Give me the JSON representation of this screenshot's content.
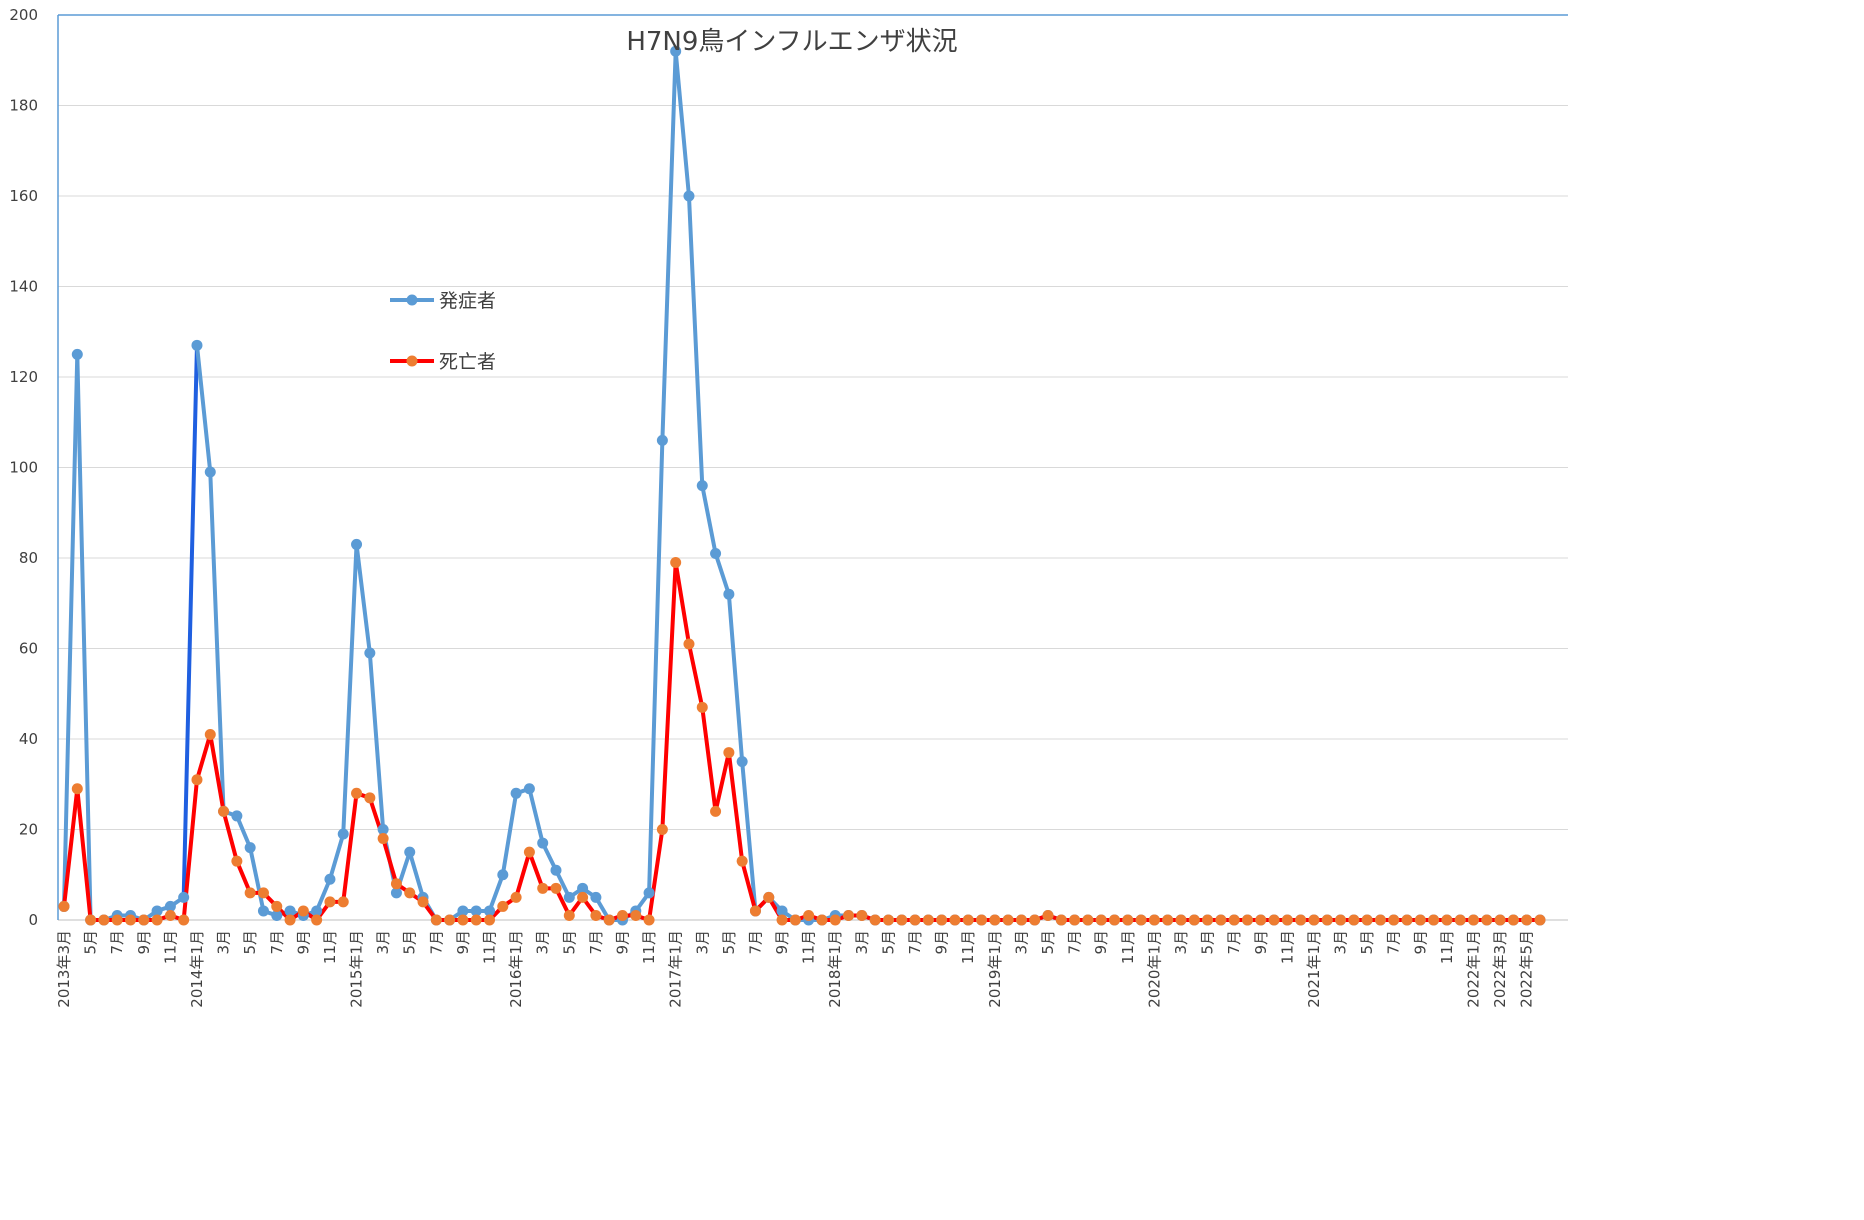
{
  "chart_data": {
    "type": "line",
    "title": "H7N9鳥インフルエンザ状況",
    "xlabel": "",
    "ylabel": "",
    "ylim": [
      0,
      200
    ],
    "y_ticks": [
      0,
      20,
      40,
      60,
      80,
      100,
      120,
      140,
      160,
      180,
      200
    ],
    "grid": true,
    "legend_position": "upper-left-inside",
    "x": [
      "2013年3月",
      "2013年4月",
      "5月",
      "6月",
      "7月",
      "8月",
      "9月",
      "10月",
      "11月",
      "12月",
      "2014年1月",
      "2月",
      "3月",
      "4月",
      "5月",
      "6月",
      "7月",
      "8月",
      "9月",
      "10月",
      "11月",
      "12月",
      "2015年1月",
      "2月",
      "3月",
      "4月",
      "5月",
      "6月",
      "7月",
      "8月",
      "9月",
      "10月",
      "11月",
      "12月",
      "2016年1月",
      "2月",
      "3月",
      "4月",
      "5月",
      "6月",
      "7月",
      "8月",
      "9月",
      "10月",
      "11月",
      "12月",
      "2017年1月",
      "2月",
      "3月",
      "4月",
      "5月",
      "6月",
      "7月",
      "8月",
      "9月",
      "10月",
      "11月",
      "12月",
      "2018年1月",
      "2月",
      "3月",
      "4月",
      "5月",
      "6月",
      "7月",
      "8月",
      "9月",
      "10月",
      "11月",
      "12月",
      "2019年1月",
      "2月",
      "3月",
      "4月",
      "5月",
      "6月",
      "7月",
      "8月",
      "9月",
      "10月",
      "11月",
      "12月",
      "2020年1月",
      "2月",
      "3月",
      "4月",
      "5月",
      "6月",
      "7月",
      "8月",
      "9月",
      "10月",
      "11月",
      "12月",
      "2021年1月",
      "2月",
      "3月",
      "4月",
      "5月",
      "6月",
      "7月",
      "8月",
      "9月",
      "10月",
      "11月",
      "12月",
      "2022年1月",
      "2月",
      "2022年3月",
      "4月",
      "2022年5月",
      "6月"
    ],
    "x_tick_labels": [
      "2013年3月",
      "5月",
      "7月",
      "9月",
      "11月",
      "2014年1月",
      "3月",
      "5月",
      "7月",
      "9月",
      "11月",
      "2015年1月",
      "3月",
      "5月",
      "7月",
      "9月",
      "11月",
      "2016年1月",
      "3月",
      "5月",
      "7月",
      "9月",
      "11月",
      "2017年1月",
      "3月",
      "5月",
      "7月",
      "9月",
      "11月",
      "2018年1月",
      "3月",
      "5月",
      "7月",
      "9月",
      "11月",
      "2019年1月",
      "3月",
      "5月",
      "7月",
      "9月",
      "11月",
      "2020年1月",
      "3月",
      "5月",
      "7月",
      "9月",
      "11月",
      "2021年1月",
      "3月",
      "5月",
      "7月",
      "9月",
      "11月",
      "2022年1月",
      "2022年3月",
      "2022年5月"
    ],
    "series": [
      {
        "name": "発症者",
        "color": "#5b9bd5",
        "highlight_color": "#1f5fe0",
        "values": [
          3,
          125,
          0,
          0,
          1,
          1,
          0,
          2,
          3,
          5,
          127,
          99,
          24,
          23,
          16,
          2,
          1,
          2,
          1,
          2,
          9,
          19,
          83,
          59,
          20,
          6,
          15,
          5,
          0,
          0,
          2,
          2,
          2,
          10,
          28,
          29,
          17,
          11,
          5,
          7,
          5,
          0,
          0,
          2,
          6,
          106,
          192,
          160,
          96,
          81,
          72,
          35,
          2,
          5,
          2,
          0,
          0,
          0,
          1,
          1,
          1,
          0,
          0,
          0,
          0,
          0,
          0,
          0,
          0,
          0,
          0,
          0,
          0,
          0,
          1,
          0,
          0,
          0,
          0,
          0,
          0,
          0,
          0,
          0,
          0,
          0,
          0,
          0,
          0,
          0,
          0,
          0,
          0,
          0,
          0,
          0,
          0,
          0,
          0,
          0,
          0,
          0,
          0,
          0,
          0,
          0,
          0,
          0,
          0,
          0,
          0,
          0
        ]
      },
      {
        "name": "死亡者",
        "color": "#ff0000",
        "marker_color": "#ed7d31",
        "values": [
          3,
          29,
          0,
          0,
          0,
          0,
          0,
          0,
          1,
          0,
          31,
          41,
          24,
          13,
          6,
          6,
          3,
          0,
          2,
          0,
          4,
          4,
          28,
          27,
          18,
          8,
          6,
          4,
          0,
          0,
          0,
          0,
          0,
          3,
          5,
          15,
          7,
          7,
          1,
          5,
          1,
          0,
          1,
          1,
          0,
          20,
          79,
          61,
          47,
          24,
          37,
          13,
          2,
          5,
          0,
          0,
          1,
          0,
          0,
          1,
          1,
          0,
          0,
          0,
          0,
          0,
          0,
          0,
          0,
          0,
          0,
          0,
          0,
          0,
          1,
          0,
          0,
          0,
          0,
          0,
          0,
          0,
          0,
          0,
          0,
          0,
          0,
          0,
          0,
          0,
          0,
          0,
          0,
          0,
          0,
          0,
          0,
          0,
          0,
          0,
          0,
          0,
          0,
          0,
          0,
          0,
          0,
          0,
          0,
          0,
          0,
          0
        ]
      }
    ]
  }
}
